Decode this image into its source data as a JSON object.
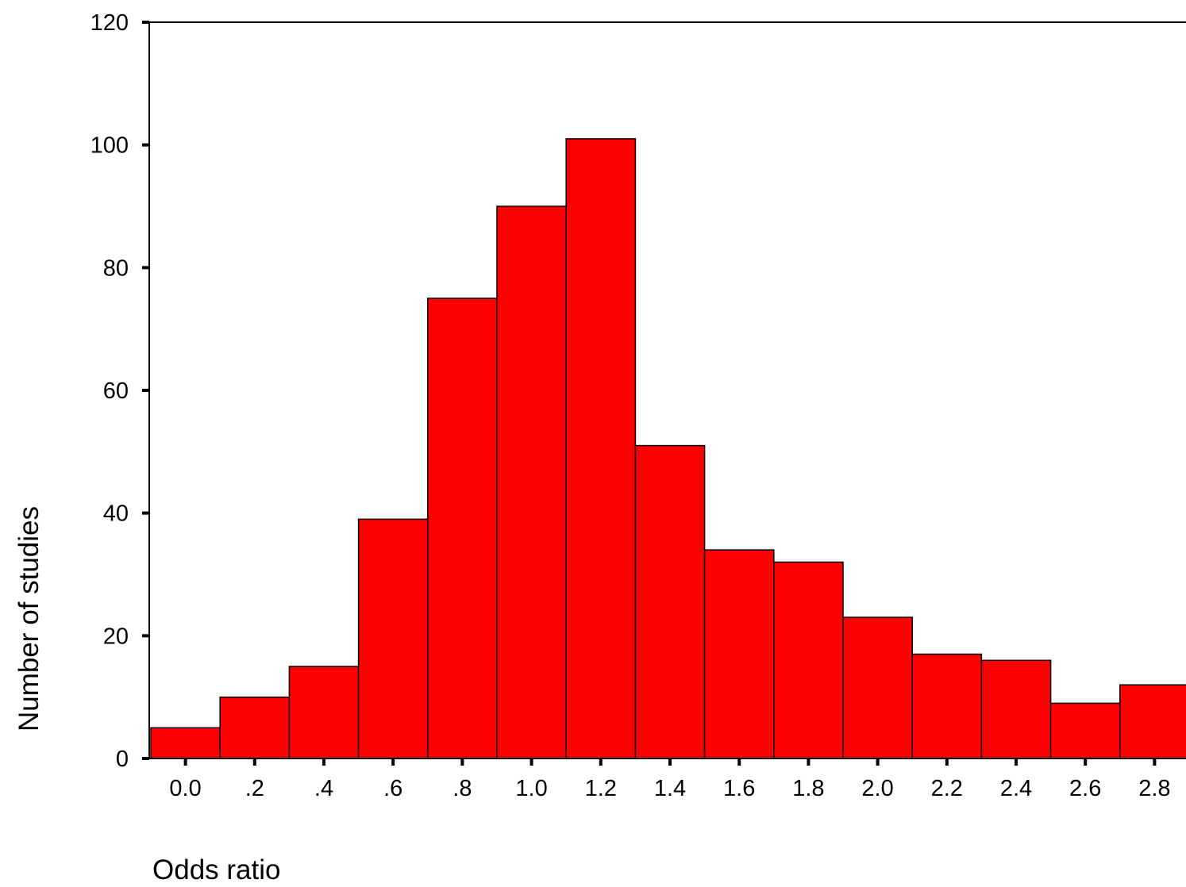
{
  "chart_data": {
    "type": "bar",
    "title": "",
    "xlabel": "Odds ratio",
    "ylabel": "Number of studies",
    "categories": [
      "0.0",
      ".2",
      ".4",
      ".6",
      ".8",
      "1.0",
      "1.2",
      "1.4",
      "1.6",
      "1.8",
      "2.0",
      "2.2",
      "2.4",
      "2.6",
      "2.8"
    ],
    "values": [
      5,
      10,
      15,
      39,
      75,
      90,
      101,
      51,
      34,
      32,
      23,
      17,
      16,
      9,
      12
    ],
    "ylim": [
      0,
      120
    ],
    "yticks": [
      0,
      20,
      40,
      60,
      80,
      100,
      120
    ],
    "grid": false,
    "bar_color": "#ff0000",
    "edge_color": "#000000"
  }
}
